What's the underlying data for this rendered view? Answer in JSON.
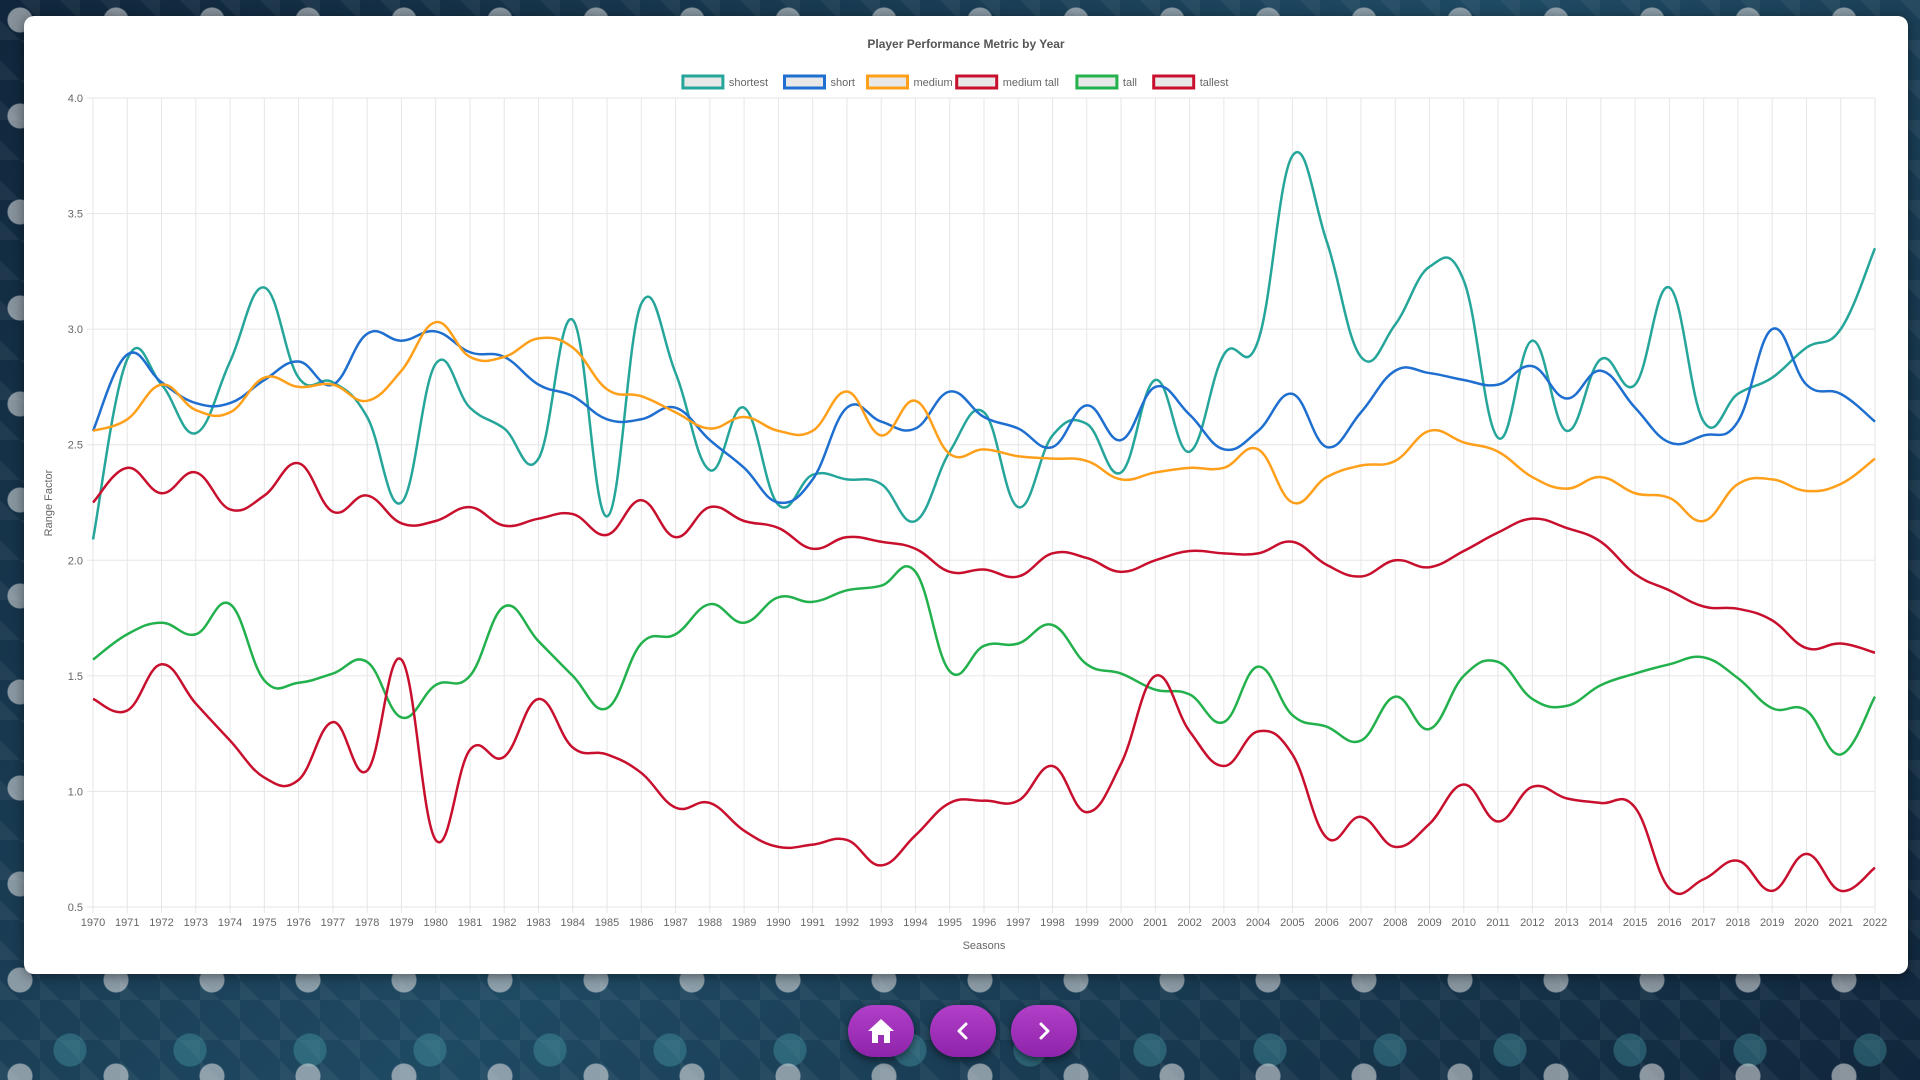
{
  "nav": {
    "home_icon": "home-icon",
    "prev_icon": "chevron-left-icon",
    "next_icon": "chevron-right-icon",
    "button_color": "#9c27b0"
  },
  "chart_data": {
    "type": "line",
    "title": "Player Performance Metric by Year",
    "xlabel": "Seasons",
    "ylabel": "Range Factor",
    "ylim": [
      0.5,
      4.0
    ],
    "yticks": [
      "0.5",
      "1.0",
      "1.5",
      "2.0",
      "2.5",
      "3.0",
      "3.5",
      "4.0"
    ],
    "grid": true,
    "legend_position": "top",
    "x": [
      "1970",
      "1971",
      "1972",
      "1973",
      "1974",
      "1975",
      "1976",
      "1977",
      "1978",
      "1979",
      "1980",
      "1981",
      "1982",
      "1983",
      "1984",
      "1985",
      "1986",
      "1987",
      "1988",
      "1989",
      "1990",
      "1991",
      "1992",
      "1993",
      "1994",
      "1995",
      "1996",
      "1997",
      "1998",
      "1999",
      "2000",
      "2001",
      "2002",
      "2003",
      "2004",
      "2005",
      "2006",
      "2007",
      "2008",
      "2009",
      "2010",
      "2011",
      "2012",
      "2013",
      "2014",
      "2015",
      "2016",
      "2017",
      "2018",
      "2019",
      "2020",
      "2021",
      "2022"
    ],
    "series": [
      {
        "name": "shortest",
        "color": "#26a69a",
        "values": [
          2.09,
          2.87,
          2.76,
          2.55,
          2.86,
          3.18,
          2.79,
          2.77,
          2.62,
          2.25,
          2.85,
          2.66,
          2.57,
          2.44,
          3.04,
          2.19,
          3.11,
          2.81,
          2.39,
          2.66,
          2.24,
          2.37,
          2.35,
          2.33,
          2.17,
          2.47,
          2.64,
          2.23,
          2.54,
          2.59,
          2.38,
          2.78,
          2.47,
          2.89,
          2.95,
          3.75,
          3.38,
          2.88,
          3.02,
          3.27,
          3.21,
          2.53,
          2.95,
          2.56,
          2.87,
          2.76,
          3.18,
          2.6,
          2.72,
          2.79,
          2.92,
          3.0,
          3.35
        ]
      },
      {
        "name": "short",
        "color": "#1e6fd0",
        "values": [
          2.56,
          2.89,
          2.77,
          2.68,
          2.68,
          2.78,
          2.86,
          2.76,
          2.98,
          2.95,
          2.99,
          2.9,
          2.88,
          2.76,
          2.71,
          2.61,
          2.61,
          2.66,
          2.52,
          2.4,
          2.25,
          2.35,
          2.66,
          2.6,
          2.57,
          2.73,
          2.62,
          2.57,
          2.49,
          2.67,
          2.52,
          2.75,
          2.63,
          2.48,
          2.56,
          2.72,
          2.49,
          2.64,
          2.82,
          2.81,
          2.78,
          2.76,
          2.84,
          2.7,
          2.82,
          2.66,
          2.51,
          2.54,
          2.6,
          3.0,
          2.76,
          2.72,
          2.6
        ]
      },
      {
        "name": "medium",
        "color": "#ff9f1a",
        "values": [
          2.56,
          2.61,
          2.76,
          2.65,
          2.64,
          2.79,
          2.75,
          2.76,
          2.69,
          2.82,
          3.03,
          2.88,
          2.88,
          2.96,
          2.92,
          2.74,
          2.71,
          2.64,
          2.57,
          2.62,
          2.56,
          2.56,
          2.73,
          2.54,
          2.69,
          2.46,
          2.48,
          2.45,
          2.44,
          2.43,
          2.35,
          2.38,
          2.4,
          2.4,
          2.48,
          2.25,
          2.36,
          2.41,
          2.43,
          2.56,
          2.51,
          2.47,
          2.36,
          2.31,
          2.36,
          2.29,
          2.27,
          2.17,
          2.33,
          2.35,
          2.3,
          2.33,
          2.44
        ]
      },
      {
        "name": "medium tall",
        "color": "#c8102e",
        "values": [
          2.25,
          2.4,
          2.29,
          2.38,
          2.22,
          2.28,
          2.42,
          2.21,
          2.28,
          2.16,
          2.17,
          2.23,
          2.15,
          2.18,
          2.2,
          2.11,
          2.26,
          2.1,
          2.23,
          2.17,
          2.14,
          2.05,
          2.1,
          2.08,
          2.05,
          1.95,
          1.96,
          1.93,
          2.03,
          2.01,
          1.95,
          2.0,
          2.04,
          2.03,
          2.03,
          2.08,
          1.98,
          1.93,
          2.0,
          1.97,
          2.04,
          2.12,
          2.18,
          2.14,
          2.08,
          1.94,
          1.87,
          1.8,
          1.79,
          1.74,
          1.62,
          1.64,
          1.6
        ]
      },
      {
        "name": "tall",
        "color": "#22b14c",
        "values": [
          1.57,
          1.68,
          1.73,
          1.68,
          1.81,
          1.48,
          1.47,
          1.51,
          1.56,
          1.32,
          1.46,
          1.5,
          1.8,
          1.65,
          1.5,
          1.36,
          1.64,
          1.68,
          1.81,
          1.73,
          1.84,
          1.82,
          1.87,
          1.89,
          1.95,
          1.52,
          1.63,
          1.64,
          1.72,
          1.55,
          1.51,
          1.44,
          1.42,
          1.3,
          1.54,
          1.33,
          1.28,
          1.22,
          1.41,
          1.27,
          1.5,
          1.56,
          1.4,
          1.37,
          1.46,
          1.51,
          1.55,
          1.58,
          1.49,
          1.36,
          1.35,
          1.16,
          1.41
        ]
      },
      {
        "name": "tallest",
        "color": "#c8102e",
        "values": [
          1.4,
          1.35,
          1.55,
          1.38,
          1.22,
          1.06,
          1.05,
          1.3,
          1.09,
          1.57,
          0.79,
          1.18,
          1.15,
          1.4,
          1.19,
          1.16,
          1.08,
          0.93,
          0.95,
          0.83,
          0.76,
          0.77,
          0.79,
          0.68,
          0.81,
          0.95,
          0.96,
          0.96,
          1.11,
          0.91,
          1.12,
          1.5,
          1.26,
          1.11,
          1.26,
          1.16,
          0.8,
          0.89,
          0.76,
          0.86,
          1.03,
          0.87,
          1.02,
          0.97,
          0.95,
          0.93,
          0.58,
          0.62,
          0.7,
          0.57,
          0.73,
          0.57,
          0.67
        ]
      }
    ]
  }
}
